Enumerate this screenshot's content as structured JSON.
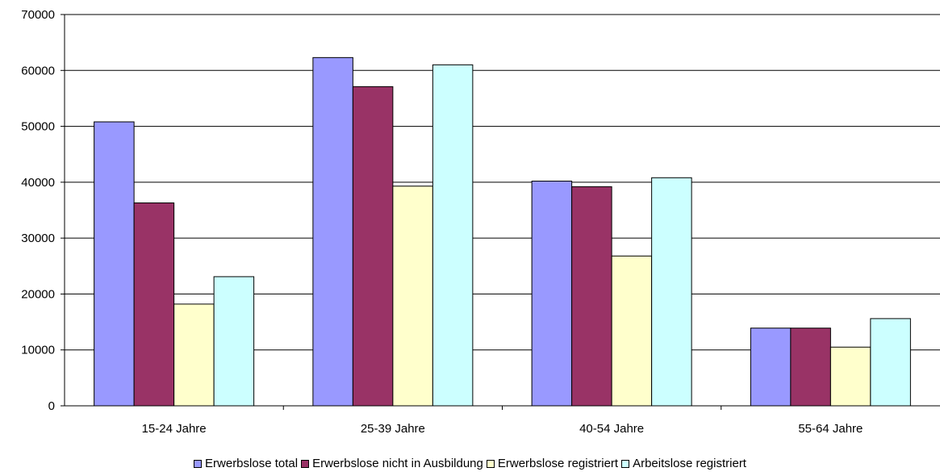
{
  "chart_data": {
    "type": "bar",
    "categories": [
      "15-24 Jahre",
      "25-39 Jahre",
      "40-54 Jahre",
      "55-64 Jahre"
    ],
    "series": [
      {
        "name": "Erwerbslose total",
        "color": "#9999ff",
        "values": [
          50800,
          62300,
          40200,
          13900
        ]
      },
      {
        "name": "Erwerbslose nicht in Ausbildung",
        "color": "#993366",
        "values": [
          36300,
          57100,
          39200,
          13900
        ]
      },
      {
        "name": "Erwerbslose registriert",
        "color": "#ffffcc",
        "values": [
          18200,
          39300,
          26800,
          10500
        ]
      },
      {
        "name": "Arbeitslose registriert",
        "color": "#ccffff",
        "values": [
          23100,
          61000,
          40800,
          15600
        ]
      }
    ],
    "yticks": [
      "0",
      "10000",
      "20000",
      "30000",
      "40000",
      "50000",
      "60000",
      "70000"
    ],
    "ylim": [
      0,
      70000
    ],
    "grid": true,
    "legend_position": "bottom"
  }
}
